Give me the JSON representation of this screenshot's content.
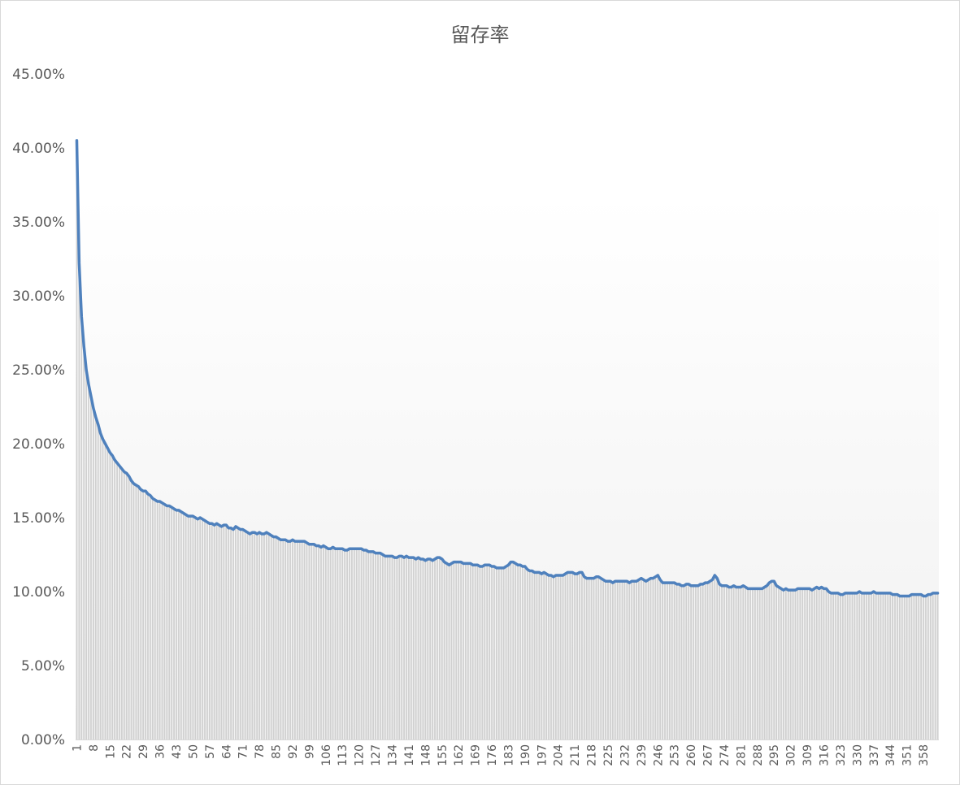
{
  "chart_data": {
    "type": "line",
    "underlay": "bar",
    "title": "留存率",
    "xlabel": "",
    "ylabel": "",
    "ylim": [
      0,
      45
    ],
    "grid": false,
    "legend": "none",
    "colors": {
      "line": "#4f81bd",
      "bar": "#d0d0d0",
      "text": "#595959",
      "border": "#d9d9d9"
    },
    "yticks": [
      "0.00%",
      "5.00%",
      "10.00%",
      "15.00%",
      "20.00%",
      "25.00%",
      "30.00%",
      "35.00%",
      "40.00%",
      "45.00%"
    ],
    "xtick_labels": [
      "1",
      "8",
      "15",
      "22",
      "29",
      "36",
      "43",
      "50",
      "57",
      "64",
      "71",
      "78",
      "85",
      "92",
      "99",
      "106",
      "113",
      "120",
      "127",
      "134",
      "141",
      "148",
      "155",
      "162",
      "169",
      "176",
      "183",
      "190",
      "197",
      "204",
      "211",
      "218",
      "225",
      "232",
      "239",
      "246",
      "253",
      "260",
      "267",
      "274",
      "281",
      "288",
      "295",
      "302",
      "309",
      "316",
      "323",
      "330",
      "337",
      "344",
      "351",
      "358"
    ],
    "categories": [
      1,
      2,
      3,
      4,
      5,
      6,
      7,
      8,
      9,
      10,
      11,
      12,
      13,
      14,
      15,
      16,
      17,
      18,
      19,
      20,
      21,
      22,
      23,
      24,
      25,
      26,
      27,
      28,
      29,
      30,
      31,
      32,
      33,
      34,
      35,
      36,
      37,
      38,
      39,
      40,
      41,
      42,
      43,
      44,
      45,
      46,
      47,
      48,
      49,
      50,
      51,
      52,
      53,
      54,
      55,
      56,
      57,
      58,
      59,
      60,
      61,
      62,
      63,
      64,
      65,
      66,
      67,
      68,
      69,
      70,
      71,
      72,
      73,
      74,
      75,
      76,
      77,
      78,
      79,
      80,
      81,
      82,
      83,
      84,
      85,
      86,
      87,
      88,
      89,
      90,
      91,
      92,
      93,
      94,
      95,
      96,
      97,
      98,
      99,
      100,
      101,
      102,
      103,
      104,
      105,
      106,
      107,
      108,
      109,
      110,
      111,
      112,
      113,
      114,
      115,
      116,
      117,
      118,
      119,
      120,
      121,
      122,
      123,
      124,
      125,
      126,
      127,
      128,
      129,
      130,
      131,
      132,
      133,
      134,
      135,
      136,
      137,
      138,
      139,
      140,
      141,
      142,
      143,
      144,
      145,
      146,
      147,
      148,
      149,
      150,
      151,
      152,
      153,
      154,
      155,
      156,
      157,
      158,
      159,
      160,
      161,
      162,
      163,
      164,
      165,
      166,
      167,
      168,
      169,
      170,
      171,
      172,
      173,
      174,
      175,
      176,
      177,
      178,
      179,
      180,
      181,
      182,
      183,
      184,
      185,
      186,
      187,
      188,
      189,
      190,
      191,
      192,
      193,
      194,
      195,
      196,
      197,
      198,
      199,
      200,
      201,
      202,
      203,
      204,
      205,
      206,
      207,
      208,
      209,
      210,
      211,
      212,
      213,
      214,
      215,
      216,
      217,
      218,
      219,
      220,
      221,
      222,
      223,
      224,
      225,
      226,
      227,
      228,
      229,
      230,
      231,
      232,
      233,
      234,
      235,
      236,
      237,
      238,
      239,
      240,
      241,
      242,
      243,
      244,
      245,
      246,
      247,
      248,
      249,
      250,
      251,
      252,
      253,
      254,
      255,
      256,
      257,
      258,
      259,
      260,
      261,
      262,
      263,
      264,
      265,
      266,
      267,
      268,
      269,
      270,
      271,
      272,
      273,
      274,
      275,
      276,
      277,
      278,
      279,
      280,
      281,
      282,
      283,
      284,
      285,
      286,
      287,
      288,
      289,
      290,
      291,
      292,
      293,
      294,
      295,
      296,
      297,
      298,
      299,
      300,
      301,
      302,
      303,
      304,
      305,
      306,
      307,
      308,
      309,
      310,
      311,
      312,
      313,
      314,
      315,
      316,
      317,
      318,
      319,
      320,
      321,
      322,
      323,
      324,
      325,
      326,
      327,
      328,
      329,
      330,
      331,
      332,
      333,
      334,
      335,
      336,
      337,
      338,
      339,
      340,
      341,
      342,
      343,
      344,
      345,
      346,
      347,
      348,
      349,
      350,
      351,
      352,
      353,
      354,
      355,
      356,
      357,
      358,
      359,
      360,
      361,
      362,
      363,
      364
    ],
    "values": [
      40.5,
      32.2,
      28.6,
      26.6,
      25.0,
      24.0,
      23.2,
      22.4,
      21.8,
      21.3,
      20.7,
      20.3,
      20.0,
      19.7,
      19.4,
      19.2,
      18.9,
      18.7,
      18.5,
      18.3,
      18.1,
      18.0,
      17.8,
      17.5,
      17.3,
      17.2,
      17.1,
      16.9,
      16.8,
      16.8,
      16.6,
      16.5,
      16.3,
      16.2,
      16.1,
      16.1,
      16.0,
      15.9,
      15.8,
      15.8,
      15.7,
      15.6,
      15.5,
      15.5,
      15.4,
      15.3,
      15.2,
      15.1,
      15.1,
      15.1,
      15.0,
      14.9,
      15.0,
      14.9,
      14.8,
      14.7,
      14.6,
      14.6,
      14.5,
      14.6,
      14.5,
      14.4,
      14.5,
      14.5,
      14.3,
      14.3,
      14.2,
      14.4,
      14.3,
      14.2,
      14.2,
      14.1,
      14.0,
      13.9,
      14.0,
      14.0,
      13.9,
      14.0,
      13.9,
      13.9,
      14.0,
      13.9,
      13.8,
      13.7,
      13.7,
      13.6,
      13.5,
      13.5,
      13.5,
      13.4,
      13.4,
      13.5,
      13.4,
      13.4,
      13.4,
      13.4,
      13.4,
      13.3,
      13.2,
      13.2,
      13.2,
      13.1,
      13.1,
      13.0,
      13.1,
      13.0,
      12.9,
      12.9,
      13.0,
      12.9,
      12.9,
      12.9,
      12.9,
      12.8,
      12.8,
      12.9,
      12.9,
      12.9,
      12.9,
      12.9,
      12.9,
      12.8,
      12.8,
      12.7,
      12.7,
      12.7,
      12.6,
      12.6,
      12.6,
      12.5,
      12.4,
      12.4,
      12.4,
      12.4,
      12.3,
      12.3,
      12.4,
      12.4,
      12.3,
      12.4,
      12.3,
      12.3,
      12.3,
      12.2,
      12.3,
      12.2,
      12.2,
      12.1,
      12.2,
      12.2,
      12.1,
      12.2,
      12.3,
      12.3,
      12.2,
      12.0,
      11.9,
      11.8,
      11.9,
      12.0,
      12.0,
      12.0,
      12.0,
      11.9,
      11.9,
      11.9,
      11.9,
      11.8,
      11.8,
      11.8,
      11.7,
      11.7,
      11.8,
      11.8,
      11.8,
      11.7,
      11.7,
      11.6,
      11.6,
      11.6,
      11.6,
      11.7,
      11.8,
      12.0,
      12.0,
      11.9,
      11.8,
      11.8,
      11.7,
      11.7,
      11.5,
      11.4,
      11.4,
      11.3,
      11.3,
      11.3,
      11.2,
      11.3,
      11.2,
      11.1,
      11.1,
      11.0,
      11.1,
      11.1,
      11.1,
      11.1,
      11.2,
      11.3,
      11.3,
      11.3,
      11.2,
      11.2,
      11.3,
      11.3,
      11.0,
      10.9,
      10.9,
      10.9,
      10.9,
      11.0,
      11.0,
      10.9,
      10.8,
      10.7,
      10.7,
      10.7,
      10.6,
      10.7,
      10.7,
      10.7,
      10.7,
      10.7,
      10.7,
      10.6,
      10.7,
      10.7,
      10.7,
      10.8,
      10.9,
      10.8,
      10.7,
      10.8,
      10.9,
      10.9,
      11.0,
      11.1,
      10.8,
      10.6,
      10.6,
      10.6,
      10.6,
      10.6,
      10.6,
      10.5,
      10.5,
      10.4,
      10.4,
      10.5,
      10.5,
      10.4,
      10.4,
      10.4,
      10.4,
      10.5,
      10.5,
      10.6,
      10.6,
      10.7,
      10.8,
      11.1,
      10.9,
      10.5,
      10.4,
      10.4,
      10.4,
      10.3,
      10.3,
      10.4,
      10.3,
      10.3,
      10.3,
      10.4,
      10.3,
      10.2,
      10.2,
      10.2,
      10.2,
      10.2,
      10.2,
      10.2,
      10.3,
      10.4,
      10.6,
      10.7,
      10.7,
      10.4,
      10.3,
      10.2,
      10.1,
      10.2,
      10.1,
      10.1,
      10.1,
      10.1,
      10.2,
      10.2,
      10.2,
      10.2,
      10.2,
      10.2,
      10.1,
      10.2,
      10.3,
      10.2,
      10.3,
      10.2,
      10.2,
      10.0,
      9.9,
      9.9,
      9.9,
      9.9,
      9.8,
      9.8,
      9.9,
      9.9,
      9.9,
      9.9,
      9.9,
      9.9,
      10.0,
      9.9,
      9.9,
      9.9,
      9.9,
      9.9,
      10.0,
      9.9,
      9.9,
      9.9,
      9.9,
      9.9,
      9.9,
      9.9,
      9.8,
      9.8,
      9.8,
      9.7,
      9.7,
      9.7,
      9.7,
      9.7,
      9.8,
      9.8,
      9.8,
      9.8,
      9.8,
      9.7,
      9.7,
      9.8,
      9.8,
      9.9,
      9.9,
      9.9
    ]
  }
}
